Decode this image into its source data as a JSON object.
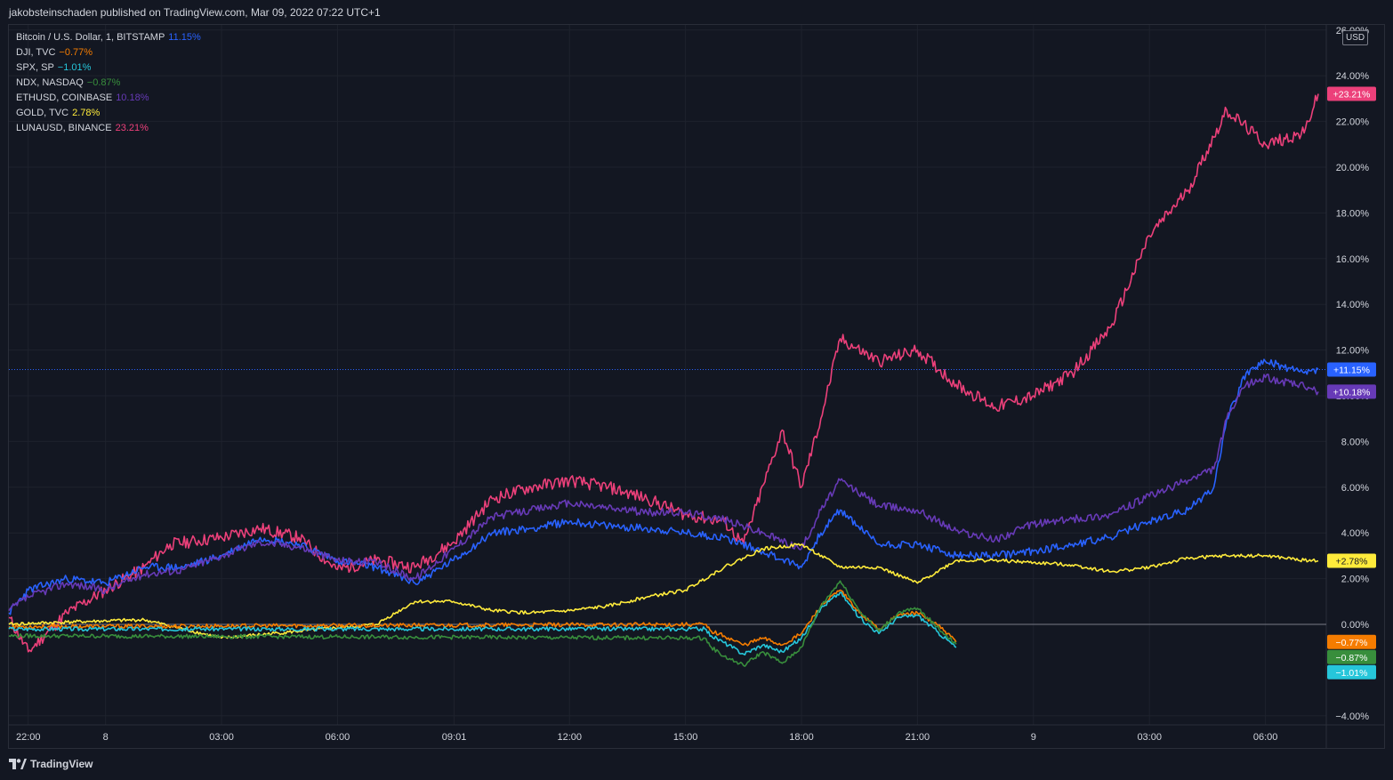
{
  "header": {
    "published": "jakobsteinschaden published on TradingView.com, Mar 09, 2022 07:22 UTC+1"
  },
  "footer": {
    "brand": "TradingView",
    "logo_icon": "tradingview-logo-icon"
  },
  "price_scale": {
    "currency": "USD"
  },
  "legend": [
    {
      "name": "Bitcoin / U.S. Dollar, 1, BITSTAMP",
      "value": "11.15%",
      "color": "#2962ff"
    },
    {
      "name": "DJI, TVC",
      "value": "−0.77%",
      "color": "#f57c00"
    },
    {
      "name": "SPX, SP",
      "value": "−1.01%",
      "color": "#26c6da"
    },
    {
      "name": "NDX, NASDAQ",
      "value": "−0.87%",
      "color": "#388e3c"
    },
    {
      "name": "ETHUSD, COINBASE",
      "value": "10.18%",
      "color": "#673ab7"
    },
    {
      "name": "GOLD, TVC",
      "value": "2.78%",
      "color": "#ffeb3b"
    },
    {
      "name": "LUNAUSD, BINANCE",
      "value": "23.21%",
      "color": "#ec407a"
    }
  ],
  "chart_data": {
    "type": "line",
    "xlabel": "",
    "ylabel": "",
    "ylim": [
      -4.3,
      26
    ],
    "y_unit": "%",
    "y_ticks": [
      -4,
      0,
      2,
      4,
      6,
      8,
      10,
      12,
      14,
      16,
      18,
      20,
      22,
      24,
      26
    ],
    "y_tick_labels": [
      "−4.00%",
      "0.00%",
      "2.00%",
      "4.00%",
      "6.00%",
      "8.00%",
      "10.00%",
      "12.00%",
      "14.00%",
      "16.00%",
      "18.00%",
      "20.00%",
      "22.00%",
      "24.00%",
      "26.00%"
    ],
    "x_range": [
      "2022-03-07 21:30",
      "2022-03-09 07:22"
    ],
    "x_ticks": [
      "2022-03-07 22:00",
      "2022-03-08 00:00",
      "2022-03-08 03:00",
      "2022-03-08 06:00",
      "2022-03-08 09:01",
      "2022-03-08 12:00",
      "2022-03-08 15:00",
      "2022-03-08 18:00",
      "2022-03-08 21:00",
      "2022-03-09 00:00",
      "2022-03-09 03:00",
      "2022-03-09 06:00"
    ],
    "x_tick_labels": [
      "22:00",
      "8",
      "03:00",
      "06:00",
      "09:01",
      "12:00",
      "15:00",
      "18:00",
      "21:00",
      "9",
      "03:00",
      "06:00"
    ],
    "zero_line": 0,
    "price_line": 11.15,
    "grid": true,
    "series": [
      {
        "name": "LUNAUSD, BINANCE",
        "color": "#ec407a",
        "label": "+23.21%",
        "label_value": 23.21,
        "x": [
          "2022-03-07 21:30",
          "2022-03-07 22:00",
          "2022-03-07 23:00",
          "2022-03-08 00:00",
          "2022-03-08 01:00",
          "2022-03-08 01:40",
          "2022-03-08 03:00",
          "2022-03-08 04:00",
          "2022-03-08 05:00",
          "2022-03-08 06:00",
          "2022-03-08 07:00",
          "2022-03-08 08:00",
          "2022-03-08 09:00",
          "2022-03-08 10:00",
          "2022-03-08 11:00",
          "2022-03-08 12:00",
          "2022-03-08 13:00",
          "2022-03-08 14:00",
          "2022-03-08 15:00",
          "2022-03-08 16:00",
          "2022-03-08 16:30",
          "2022-03-08 17:30",
          "2022-03-08 18:00",
          "2022-03-08 18:30",
          "2022-03-08 19:00",
          "2022-03-08 20:00",
          "2022-03-08 21:00",
          "2022-03-08 22:00",
          "2022-03-08 23:00",
          "2022-03-09 00:00",
          "2022-03-09 01:00",
          "2022-03-09 02:00",
          "2022-03-09 03:00",
          "2022-03-09 04:00",
          "2022-03-09 05:00",
          "2022-03-09 06:00",
          "2022-03-09 07:00",
          "2022-03-09 07:22"
        ],
        "y": [
          0.3,
          -1.2,
          0.5,
          1.5,
          2.5,
          3.5,
          3.8,
          4.2,
          3.8,
          2.4,
          2.8,
          2.5,
          3.6,
          5.5,
          6.0,
          6.3,
          6.0,
          5.5,
          4.8,
          4.5,
          3.5,
          8.5,
          6.0,
          9.0,
          12.5,
          11.5,
          12.0,
          10.5,
          9.5,
          10.0,
          11.0,
          13.0,
          17.0,
          19.0,
          22.5,
          21.0,
          21.5,
          23.21
        ]
      },
      {
        "name": "Bitcoin / U.S. Dollar, 1, BITSTAMP",
        "color": "#2962ff",
        "label": "+11.15%",
        "label_value": 11.15,
        "x": [
          "2022-03-07 21:30",
          "2022-03-07 22:00",
          "2022-03-07 23:00",
          "2022-03-08 00:00",
          "2022-03-08 01:00",
          "2022-03-08 02:00",
          "2022-03-08 03:00",
          "2022-03-08 04:00",
          "2022-03-08 05:00",
          "2022-03-08 06:00",
          "2022-03-08 07:00",
          "2022-03-08 08:00",
          "2022-03-08 09:00",
          "2022-03-08 10:00",
          "2022-03-08 11:00",
          "2022-03-08 12:00",
          "2022-03-08 13:00",
          "2022-03-08 14:00",
          "2022-03-08 15:00",
          "2022-03-08 16:00",
          "2022-03-08 17:00",
          "2022-03-08 18:00",
          "2022-03-08 18:30",
          "2022-03-08 19:00",
          "2022-03-08 20:00",
          "2022-03-08 21:00",
          "2022-03-08 22:00",
          "2022-03-08 23:00",
          "2022-03-09 00:00",
          "2022-03-09 01:00",
          "2022-03-09 02:00",
          "2022-03-09 03:00",
          "2022-03-09 04:00",
          "2022-03-09 04:40",
          "2022-03-09 05:00",
          "2022-03-09 05:30",
          "2022-03-09 06:00",
          "2022-03-09 07:00",
          "2022-03-09 07:22"
        ],
        "y": [
          0.5,
          1.5,
          2.0,
          1.8,
          2.5,
          2.5,
          3.0,
          3.8,
          3.5,
          2.8,
          2.5,
          1.8,
          2.8,
          4.0,
          4.2,
          4.5,
          4.3,
          4.2,
          4.0,
          3.8,
          3.2,
          2.5,
          4.0,
          5.0,
          3.5,
          3.5,
          3.0,
          3.0,
          3.2,
          3.5,
          3.8,
          4.5,
          5.0,
          6.0,
          9.0,
          11.0,
          11.5,
          11.0,
          11.15
        ]
      },
      {
        "name": "ETHUSD, COINBASE",
        "color": "#673ab7",
        "label": "+10.18%",
        "label_value": 10.18,
        "x": [
          "2022-03-07 21:30",
          "2022-03-07 22:00",
          "2022-03-07 23:00",
          "2022-03-08 00:00",
          "2022-03-08 01:00",
          "2022-03-08 02:00",
          "2022-03-08 03:00",
          "2022-03-08 04:00",
          "2022-03-08 05:00",
          "2022-03-08 06:00",
          "2022-03-08 07:00",
          "2022-03-08 08:00",
          "2022-03-08 09:00",
          "2022-03-08 10:00",
          "2022-03-08 11:00",
          "2022-03-08 12:00",
          "2022-03-08 13:00",
          "2022-03-08 14:00",
          "2022-03-08 15:00",
          "2022-03-08 16:00",
          "2022-03-08 17:00",
          "2022-03-08 18:00",
          "2022-03-08 18:30",
          "2022-03-08 19:00",
          "2022-03-08 20:00",
          "2022-03-08 21:00",
          "2022-03-08 22:00",
          "2022-03-08 23:00",
          "2022-03-09 00:00",
          "2022-03-09 01:00",
          "2022-03-09 02:00",
          "2022-03-09 03:00",
          "2022-03-09 04:00",
          "2022-03-09 04:40",
          "2022-03-09 05:00",
          "2022-03-09 05:30",
          "2022-03-09 06:00",
          "2022-03-09 07:00",
          "2022-03-09 07:22"
        ],
        "y": [
          0.6,
          1.2,
          1.8,
          1.5,
          2.2,
          2.4,
          3.0,
          3.6,
          3.4,
          2.8,
          2.7,
          2.0,
          3.3,
          4.7,
          5.0,
          5.3,
          5.1,
          4.9,
          4.9,
          4.6,
          4.0,
          3.3,
          5.0,
          6.3,
          5.2,
          5.0,
          4.1,
          3.7,
          4.4,
          4.6,
          4.8,
          5.6,
          6.3,
          6.8,
          9.0,
          10.5,
          10.8,
          10.4,
          10.18
        ]
      },
      {
        "name": "GOLD, TVC",
        "color": "#ffeb3b",
        "label": "+2.78%",
        "label_value": 2.78,
        "x": [
          "2022-03-07 21:30",
          "2022-03-07 23:00",
          "2022-03-08 01:00",
          "2022-03-08 03:00",
          "2022-03-08 05:00",
          "2022-03-08 07:00",
          "2022-03-08 08:00",
          "2022-03-08 09:00",
          "2022-03-08 10:00",
          "2022-03-08 11:00",
          "2022-03-08 12:00",
          "2022-03-08 13:00",
          "2022-03-08 14:00",
          "2022-03-08 15:00",
          "2022-03-08 16:00",
          "2022-03-08 17:00",
          "2022-03-08 18:00",
          "2022-03-08 19:00",
          "2022-03-08 20:00",
          "2022-03-08 21:00",
          "2022-03-08 22:00",
          "2022-03-08 23:00",
          "2022-03-09 00:00",
          "2022-03-09 01:00",
          "2022-03-09 02:00",
          "2022-03-09 03:00",
          "2022-03-09 04:00",
          "2022-03-09 05:00",
          "2022-03-09 06:00",
          "2022-03-09 07:00",
          "2022-03-09 07:22"
        ],
        "y": [
          0.0,
          0.1,
          0.2,
          -0.6,
          -0.3,
          0.0,
          1.0,
          1.0,
          0.6,
          0.5,
          0.6,
          0.8,
          1.2,
          1.5,
          2.5,
          3.3,
          3.5,
          2.5,
          2.5,
          1.8,
          2.8,
          2.8,
          2.7,
          2.6,
          2.3,
          2.5,
          2.9,
          3.0,
          3.0,
          2.8,
          2.78
        ]
      },
      {
        "name": "DJI, TVC",
        "color": "#f57c00",
        "label": "−0.77%",
        "label_value": -0.77,
        "x": [
          "2022-03-07 21:30",
          "2022-03-08 15:30",
          "2022-03-08 15:40",
          "2022-03-08 16:00",
          "2022-03-08 16:30",
          "2022-03-08 17:00",
          "2022-03-08 17:30",
          "2022-03-08 18:00",
          "2022-03-08 18:30",
          "2022-03-08 19:00",
          "2022-03-08 19:30",
          "2022-03-08 20:00",
          "2022-03-08 20:30",
          "2022-03-08 21:00",
          "2022-03-08 21:30",
          "2022-03-08 22:00"
        ],
        "y": [
          -0.1,
          0.0,
          -0.3,
          -0.5,
          -0.9,
          -0.6,
          -0.9,
          -0.4,
          0.8,
          1.5,
          0.5,
          -0.2,
          0.4,
          0.5,
          0.0,
          -0.77
        ]
      },
      {
        "name": "SPX, SP",
        "color": "#26c6da",
        "label": "−1.01%",
        "label_value": -1.01,
        "x": [
          "2022-03-07 21:30",
          "2022-03-08 15:30",
          "2022-03-08 15:40",
          "2022-03-08 16:00",
          "2022-03-08 16:30",
          "2022-03-08 17:00",
          "2022-03-08 17:30",
          "2022-03-08 18:00",
          "2022-03-08 18:30",
          "2022-03-08 19:00",
          "2022-03-08 19:30",
          "2022-03-08 20:00",
          "2022-03-08 20:30",
          "2022-03-08 21:00",
          "2022-03-08 21:30",
          "2022-03-08 22:00"
        ],
        "y": [
          -0.2,
          -0.2,
          -0.5,
          -0.8,
          -1.3,
          -0.9,
          -1.2,
          -0.6,
          0.7,
          1.4,
          0.3,
          -0.4,
          0.3,
          0.4,
          -0.3,
          -1.01
        ]
      },
      {
        "name": "NDX, NASDAQ",
        "color": "#388e3c",
        "label": "−0.87%",
        "label_value": -0.87,
        "x": [
          "2022-03-07 21:30",
          "2022-03-08 15:30",
          "2022-03-08 15:40",
          "2022-03-08 16:00",
          "2022-03-08 16:30",
          "2022-03-08 17:00",
          "2022-03-08 17:30",
          "2022-03-08 18:00",
          "2022-03-08 18:30",
          "2022-03-08 19:00",
          "2022-03-08 19:30",
          "2022-03-08 20:00",
          "2022-03-08 20:30",
          "2022-03-08 21:00",
          "2022-03-08 21:30",
          "2022-03-08 22:00"
        ],
        "y": [
          -0.5,
          -0.6,
          -1.0,
          -1.4,
          -1.8,
          -1.2,
          -1.7,
          -1.0,
          0.8,
          1.9,
          0.6,
          -0.3,
          0.5,
          0.7,
          -0.1,
          -0.87
        ]
      }
    ]
  }
}
